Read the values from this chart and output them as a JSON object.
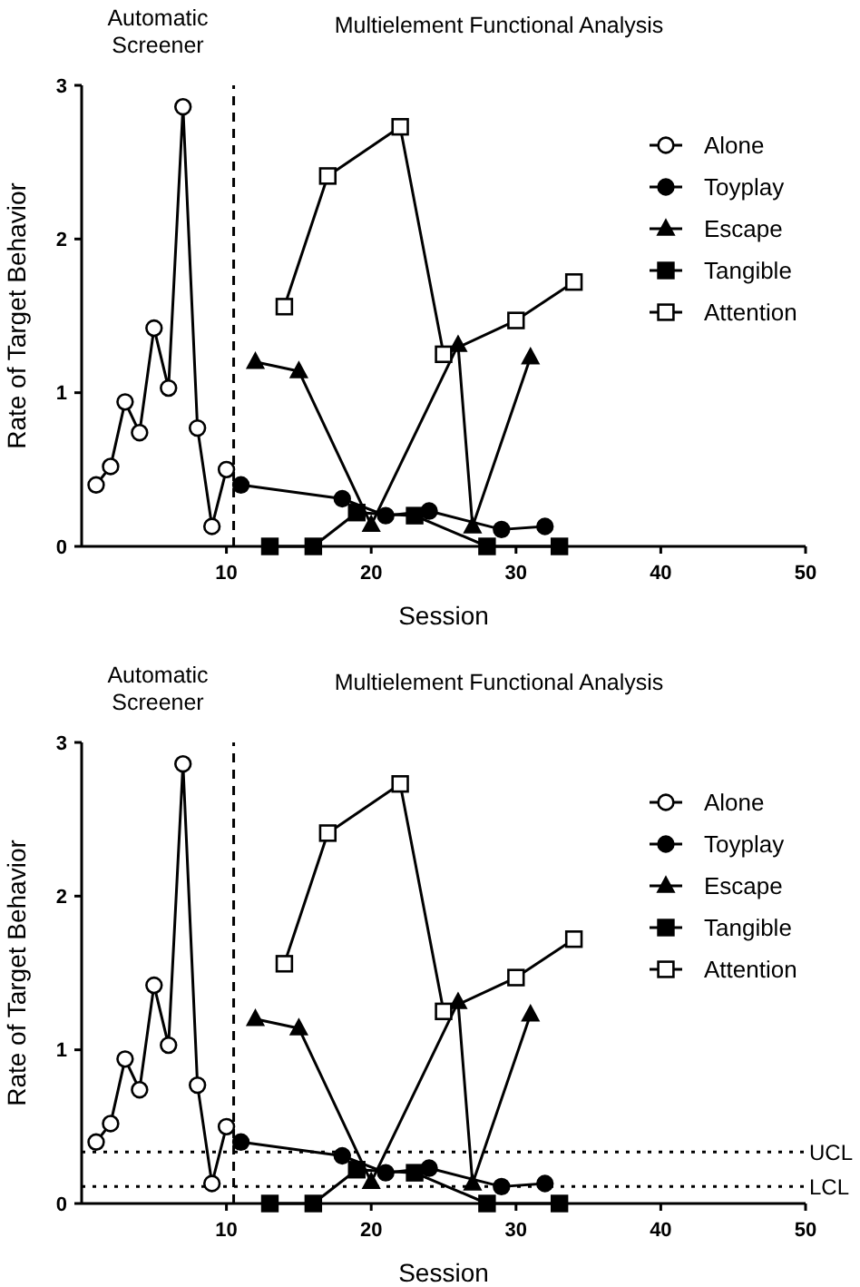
{
  "chart_data": [
    {
      "type": "line",
      "xlabel": "Session",
      "ylabel": "Rate of Target Behavior",
      "annotations": [
        "Automatic Screener",
        "Multielement Functional Analysis"
      ],
      "xlim": [
        0,
        50
      ],
      "xticks": [
        10,
        20,
        30,
        40,
        50
      ],
      "ylim": [
        0,
        3
      ],
      "yticks": [
        0,
        1,
        2,
        3
      ],
      "grid": false,
      "legend": "top right",
      "series": [
        {
          "name": "Alone",
          "color": "#ffffff",
          "marker": "circle",
          "x": [
            1,
            2,
            3,
            4,
            5,
            6,
            7,
            8,
            9,
            10
          ],
          "values": [
            0.4,
            0.52,
            0.94,
            0.74,
            1.42,
            1.03,
            2.86,
            0.77,
            0.13,
            0.5
          ]
        },
        {
          "name": "Toyplay",
          "color": "#000000",
          "marker": "circle",
          "x": [
            11,
            18,
            21,
            24,
            29,
            32
          ],
          "values": [
            0.4,
            0.31,
            0.2,
            0.23,
            0.11,
            0.13
          ]
        },
        {
          "name": "Escape",
          "color": "#000000",
          "marker": "triangle",
          "x": [
            12,
            15,
            20,
            26,
            27,
            31
          ],
          "values": [
            1.2,
            1.14,
            0.14,
            1.31,
            0.13,
            1.23
          ]
        },
        {
          "name": "Tangible",
          "color": "#000000",
          "marker": "square",
          "x": [
            13,
            16,
            19,
            23,
            28,
            33
          ],
          "values": [
            0,
            0,
            0.22,
            0.2,
            0,
            0
          ]
        },
        {
          "name": "Attention",
          "color": "#ffffff",
          "marker": "square",
          "x": [
            14,
            17,
            22,
            25,
            30,
            34
          ],
          "values": [
            1.56,
            2.41,
            2.73,
            1.25,
            1.47,
            1.72
          ]
        }
      ],
      "ref_lines": [
        {
          "axis": "x",
          "value": 10.5,
          "line_style": "dashed"
        }
      ]
    },
    {
      "type": "line",
      "xlabel": "Session",
      "ylabel": "Rate of Target Behavior",
      "annotations": [
        "Automatic Screener",
        "Multielement Functional Analysis"
      ],
      "xlim": [
        0,
        50
      ],
      "xticks": [
        10,
        20,
        30,
        40,
        50
      ],
      "ylim": [
        0,
        3
      ],
      "yticks": [
        0,
        1,
        2,
        3
      ],
      "grid": false,
      "legend": "top right",
      "series": [
        {
          "name": "Alone",
          "color": "#ffffff",
          "marker": "circle",
          "x": [
            1,
            2,
            3,
            4,
            5,
            6,
            7,
            8,
            9,
            10
          ],
          "values": [
            0.4,
            0.52,
            0.94,
            0.74,
            1.42,
            1.03,
            2.86,
            0.77,
            0.13,
            0.5
          ]
        },
        {
          "name": "Toyplay",
          "color": "#000000",
          "marker": "circle",
          "x": [
            11,
            18,
            21,
            24,
            29,
            32
          ],
          "values": [
            0.4,
            0.31,
            0.2,
            0.23,
            0.11,
            0.13
          ]
        },
        {
          "name": "Escape",
          "color": "#000000",
          "marker": "triangle",
          "x": [
            12,
            15,
            20,
            26,
            27,
            31
          ],
          "values": [
            1.2,
            1.14,
            0.14,
            1.31,
            0.13,
            1.23
          ]
        },
        {
          "name": "Tangible",
          "color": "#000000",
          "marker": "square",
          "x": [
            13,
            16,
            19,
            23,
            28,
            33
          ],
          "values": [
            0,
            0,
            0.22,
            0.2,
            0,
            0
          ]
        },
        {
          "name": "Attention",
          "color": "#ffffff",
          "marker": "square",
          "x": [
            14,
            17,
            22,
            25,
            30,
            34
          ],
          "values": [
            1.56,
            2.41,
            2.73,
            1.25,
            1.47,
            1.72
          ]
        }
      ],
      "ref_lines": [
        {
          "axis": "x",
          "value": 10.5,
          "line_style": "dashed"
        },
        {
          "axis": "y",
          "value": 0.335,
          "label": "UCL",
          "line_style": "dotted"
        },
        {
          "axis": "y",
          "value": 0.11,
          "label": "LCL",
          "line_style": "dotted"
        }
      ]
    }
  ]
}
